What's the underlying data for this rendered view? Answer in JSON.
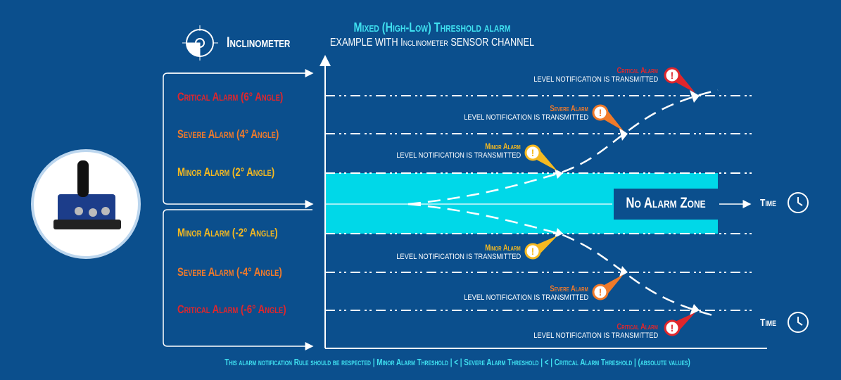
{
  "header": {
    "sensor_label": "Inclinometer",
    "title": "Mixed (High-Low) Threshold alarm",
    "subtitle": "EXAMPLE WITH Inclinometer SENSOR CHANNEL"
  },
  "levels": [
    {
      "label": "Critical Alarm (6° Angle)",
      "color": "#e0262c"
    },
    {
      "label": "Severe Alarm (4° Angle)",
      "color": "#f07a2a"
    },
    {
      "label": "Minor Alarm (2° Angle)",
      "color": "#f5b920"
    },
    {
      "label": "Minor Alarm (-2° Angle)",
      "color": "#f5b920"
    },
    {
      "label": "Severe Alarm (-4° Angle)",
      "color": "#f07a2a"
    },
    {
      "label": "Critical Alarm (-6° Angle)",
      "color": "#e0262c"
    }
  ],
  "notifications": [
    {
      "title": "Critical Alarm",
      "text": "LEVEL NOTIFICATION IS TRANSMITTED"
    },
    {
      "title": "Severe Alarm",
      "text": "LEVEL NOTIFICATION IS TRANSMITTED"
    },
    {
      "title": "Minor Alarm",
      "text": "LEVEL NOTIFICATION IS TRANSMITTED"
    },
    {
      "title": "Minor Alarm",
      "text": "LEVEL NOTIFICATION IS TRANSMITTED"
    },
    {
      "title": "Severe Alarm",
      "text": "LEVEL NOTIFICATION IS TRANSMITTED"
    },
    {
      "title": "Critical Alarm",
      "text": "LEVEL NOTIFICATION IS TRANSMITTED"
    }
  ],
  "zone_label": "No Alarm Zone",
  "time_label": "Time",
  "footer": "This alarm notification Rule should be respected | Minor Alarm Threshold | < | Severe Alarm Threshold | < | Critical Alarm Threshold | (absolute values)",
  "colors": {
    "background": "#0b4f8d",
    "zone": "#00d8e8",
    "accent": "#3fe0f0"
  },
  "icons": [
    "inclinometer-icon",
    "alert-icon",
    "clock-icon",
    "sensor-device-image"
  ]
}
